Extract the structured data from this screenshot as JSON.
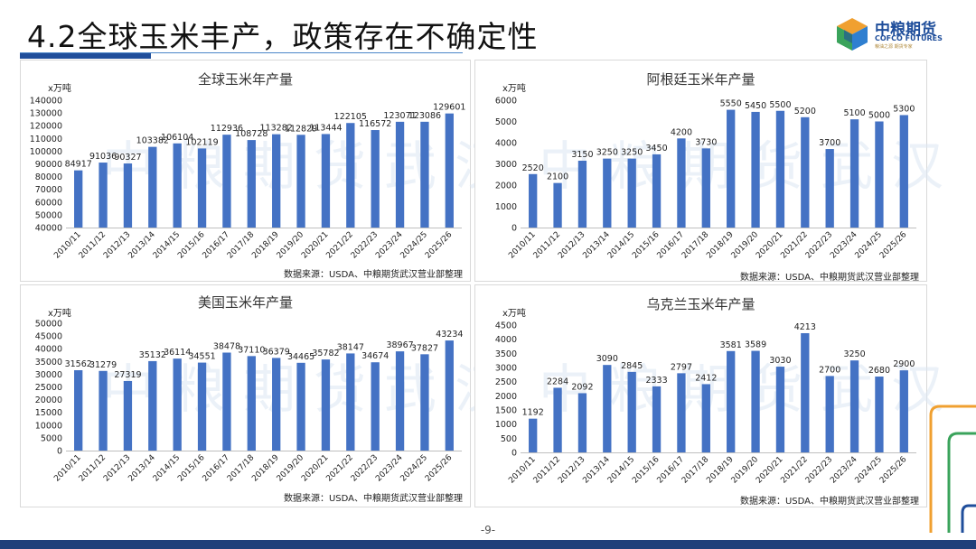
{
  "slide": {
    "title": "4.2全球玉米丰产，政策存在不确定性",
    "page_number": "-9-",
    "logo_cn": "中粮期货",
    "logo_en": "COFCO FUTURES",
    "logo_sub": "粮油之源 期货专家",
    "watermark": "中粮期货武汉"
  },
  "colors": {
    "bar": "#4472c4",
    "title_bar": "#1f4e9b",
    "accent_orange": "#f0a030",
    "accent_green": "#3aa35b"
  },
  "chart_data": [
    {
      "type": "bar",
      "title": "全球玉米年产量",
      "ylabel": "x万吨",
      "source": "数据来源：USDA、中粮期货武汉营业部整理",
      "categories": [
        "2010/11",
        "2011/12",
        "2012/13",
        "2013/14",
        "2014/15",
        "2015/16",
        "2016/17",
        "2017/18",
        "2018/19",
        "2019/20",
        "2020/21",
        "2021/22",
        "2022/23",
        "2023/24",
        "2024/25",
        "2025/26"
      ],
      "values": [
        84917,
        91036,
        90327,
        103382,
        106104,
        102119,
        112936,
        108728,
        113282,
        112829,
        113444,
        122105,
        116572,
        123071,
        123086,
        129601
      ],
      "ylim": [
        40000,
        140000
      ],
      "yticks": [
        40000,
        50000,
        60000,
        70000,
        80000,
        90000,
        100000,
        110000,
        120000,
        130000,
        140000
      ]
    },
    {
      "type": "bar",
      "title": "阿根廷玉米年产量",
      "ylabel": "x万吨",
      "source": "数据来源：USDA、中粮期货武汉营业部整理",
      "categories": [
        "2010/11",
        "2011/12",
        "2012/13",
        "2013/14",
        "2014/15",
        "2015/16",
        "2016/17",
        "2017/18",
        "2018/19",
        "2019/20",
        "2020/21",
        "2021/22",
        "2022/23",
        "2023/24",
        "2024/25",
        "2025/26"
      ],
      "values": [
        2520,
        2100,
        3150,
        3250,
        3250,
        3450,
        4200,
        3730,
        5550,
        5450,
        5500,
        5200,
        3700,
        5100,
        5000,
        5300
      ],
      "ylim": [
        0,
        6000
      ],
      "yticks": [
        0,
        1000,
        2000,
        3000,
        4000,
        5000,
        6000
      ]
    },
    {
      "type": "bar",
      "title": "美国玉米年产量",
      "ylabel": "x万吨",
      "source": "数据来源：USDA、中粮期货武汉营业部整理",
      "categories": [
        "2010/11",
        "2011/12",
        "2012/13",
        "2013/14",
        "2014/15",
        "2015/16",
        "2016/17",
        "2017/18",
        "2018/19",
        "2019/20",
        "2020/21",
        "2021/22",
        "2022/23",
        "2023/24",
        "2024/25",
        "2025/26"
      ],
      "values": [
        31562,
        31279,
        27319,
        35132,
        36114,
        34551,
        38478,
        37110,
        36379,
        34465,
        35782,
        38147,
        34674,
        38967,
        37827,
        43234
      ],
      "ylim": [
        0,
        50000
      ],
      "yticks": [
        0,
        5000,
        10000,
        15000,
        20000,
        25000,
        30000,
        35000,
        40000,
        45000,
        50000
      ]
    },
    {
      "type": "bar",
      "title": "乌克兰玉米年产量",
      "ylabel": "x万吨",
      "source": "数据来源：USDA、中粮期货武汉营业部整理",
      "categories": [
        "2010/11",
        "2011/12",
        "2012/13",
        "2013/14",
        "2014/15",
        "2015/16",
        "2016/17",
        "2017/18",
        "2018/19",
        "2019/20",
        "2020/21",
        "2021/22",
        "2022/23",
        "2023/24",
        "2024/25",
        "2025/26"
      ],
      "values": [
        1192,
        2284,
        2092,
        3090,
        2845,
        2333,
        2797,
        2412,
        3581,
        3589,
        3030,
        4213,
        2700,
        3250,
        2680,
        2900
      ],
      "ylim": [
        0,
        4500
      ],
      "yticks": [
        0,
        500,
        1000,
        1500,
        2000,
        2500,
        3000,
        3500,
        4000,
        4500
      ]
    }
  ]
}
